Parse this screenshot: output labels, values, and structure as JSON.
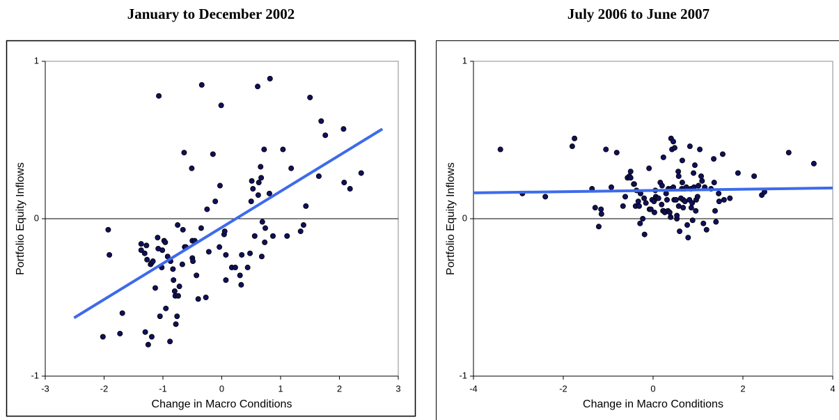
{
  "chart_data": [
    {
      "type": "scatter",
      "title": "January to December 2002",
      "x_label": "Change in Macro Conditions",
      "y_label": "Portfolio Equity Inflows",
      "xlim": [
        -3,
        3
      ],
      "ylim": [
        -1,
        1
      ],
      "xticks": [
        -3,
        -2,
        -1,
        0,
        1,
        2,
        3
      ],
      "yticks": [
        -1,
        0,
        1
      ],
      "zero_line": true,
      "color": "#10105a",
      "x": [
        -1.93,
        -1.91,
        -2.02,
        -1.73,
        -1.69,
        -1.37,
        -1.28,
        -1.31,
        -1.27,
        -1.37,
        -1.3,
        -1.25,
        -1.19,
        -1.21,
        -1.19,
        -1.17,
        -1.13,
        -1.09,
        -1.08,
        -1.07,
        -1.05,
        -1.02,
        -0.98,
        -1.01,
        -0.96,
        -0.95,
        -0.92,
        -0.88,
        -0.87,
        -0.83,
        -0.82,
        -0.8,
        -0.79,
        -0.78,
        -0.76,
        -0.75,
        -0.74,
        -0.72,
        -0.67,
        -0.66,
        -0.64,
        -0.63,
        -0.61,
        -0.51,
        -0.5,
        -0.5,
        -0.49,
        -0.46,
        -0.43,
        -0.4,
        -0.35,
        -0.34,
        -0.27,
        -0.25,
        -0.22,
        -0.15,
        -0.11,
        -0.04,
        -0.03,
        -0.01,
        0.04,
        0.05,
        0.07,
        0.07,
        0.17,
        0.23,
        0.31,
        0.33,
        0.34,
        0.44,
        0.48,
        0.5,
        0.51,
        0.53,
        0.56,
        0.61,
        0.62,
        0.63,
        0.66,
        0.67,
        0.68,
        0.69,
        0.72,
        0.73,
        0.74,
        0.81,
        0.82,
        0.87,
        1.04,
        1.11,
        1.18,
        1.34,
        1.39,
        1.43,
        1.5,
        1.65,
        1.69,
        1.76,
        2.07,
        2.08,
        2.18,
        2.37
      ],
      "values": [
        -0.07,
        -0.23,
        -0.75,
        -0.73,
        -0.6,
        -0.16,
        -0.17,
        -0.22,
        -0.26,
        -0.2,
        -0.72,
        -0.8,
        -0.75,
        -0.29,
        -0.28,
        -0.27,
        -0.44,
        -0.12,
        -0.19,
        0.78,
        -0.62,
        -0.31,
        -0.14,
        -0.2,
        -0.15,
        -0.57,
        -0.24,
        -0.78,
        -0.27,
        -0.32,
        -0.39,
        -0.46,
        -0.49,
        -0.67,
        -0.62,
        -0.04,
        -0.49,
        -0.43,
        -0.29,
        -0.07,
        0.42,
        -0.18,
        -0.18,
        0.32,
        -0.14,
        -0.25,
        -0.27,
        -0.14,
        -0.36,
        -0.51,
        -0.06,
        0.85,
        -0.5,
        0.06,
        -0.21,
        0.41,
        0.11,
        -0.18,
        0.21,
        0.72,
        -0.1,
        -0.08,
        -0.23,
        -0.39,
        -0.31,
        -0.31,
        -0.36,
        -0.42,
        -0.23,
        -0.31,
        -0.22,
        0.11,
        0.24,
        0.19,
        -0.11,
        0.84,
        0.15,
        0.23,
        0.33,
        0.26,
        -0.24,
        -0.02,
        0.44,
        -0.15,
        -0.06,
        0.16,
        0.89,
        -0.11,
        0.44,
        -0.11,
        0.32,
        -0.08,
        -0.04,
        0.08,
        0.77,
        0.27,
        0.62,
        0.53,
        0.57,
        0.23,
        0.19,
        0.29
      ],
      "trend_line": {
        "color": "#3d6bea",
        "x": [
          -2.51,
          2.73
        ],
        "values": [
          -0.63,
          0.57
        ]
      }
    },
    {
      "type": "scatter",
      "title": "July 2006 to June 2007",
      "x_label": "Change in Macro Conditions",
      "y_label": "Portfolio Equity Inflows",
      "xlim": [
        -4,
        4
      ],
      "ylim": [
        -1,
        1
      ],
      "xticks": [
        -4,
        -2,
        0,
        2,
        4
      ],
      "yticks": [
        -1,
        0,
        1
      ],
      "zero_line": true,
      "color": "#10105a",
      "x": [
        -3.4,
        -2.91,
        -2.4,
        -1.8,
        -1.75,
        -1.36,
        -1.29,
        -1.21,
        -1.16,
        -1.15,
        -1.05,
        -0.93,
        -0.81,
        -0.67,
        -0.62,
        -0.57,
        -0.53,
        -0.5,
        -0.5,
        -0.43,
        -0.42,
        -0.39,
        -0.37,
        -0.33,
        -0.31,
        -0.29,
        -0.28,
        -0.23,
        -0.2,
        -0.19,
        -0.16,
        -0.09,
        -0.08,
        -0.05,
        -0.02,
        0.02,
        0.03,
        0.05,
        0.06,
        0.09,
        0.12,
        0.16,
        0.19,
        0.2,
        0.22,
        0.23,
        0.23,
        0.26,
        0.29,
        0.31,
        0.33,
        0.34,
        0.37,
        0.39,
        0.4,
        0.4,
        0.42,
        0.45,
        0.45,
        0.47,
        0.48,
        0.51,
        0.53,
        0.53,
        0.56,
        0.57,
        0.57,
        0.59,
        0.62,
        0.64,
        0.65,
        0.65,
        0.67,
        0.67,
        0.7,
        0.71,
        0.74,
        0.76,
        0.78,
        0.81,
        0.82,
        0.84,
        0.85,
        0.87,
        0.88,
        0.9,
        0.91,
        0.93,
        0.95,
        0.96,
        0.99,
        1.01,
        1.04,
        1.07,
        1.09,
        1.12,
        1.15,
        1.19,
        1.29,
        1.35,
        1.36,
        1.4,
        1.38,
        1.46,
        1.47,
        1.55,
        1.58,
        1.71,
        1.89,
        2.25,
        2.42,
        2.48,
        3.02,
        3.58
      ],
      "values": [
        0.44,
        0.16,
        0.14,
        0.46,
        0.51,
        0.19,
        0.07,
        -0.05,
        0.06,
        0.03,
        0.44,
        0.2,
        0.42,
        0.08,
        0.14,
        0.26,
        0.27,
        0.3,
        0.26,
        0.22,
        0.22,
        0.08,
        0.18,
        0.11,
        0.08,
        -0.03,
        0.16,
        0.0,
        0.13,
        -0.1,
        0.1,
        0.32,
        0.06,
        0.06,
        0.12,
        0.11,
        0.04,
        0.18,
        0.14,
        0.13,
        0.13,
        0.23,
        0.09,
        0.21,
        0.05,
        0.05,
        0.39,
        0.04,
        0.16,
        0.12,
        0.05,
        0.19,
        0.04,
        0.01,
        0.51,
        0.19,
        0.44,
        0.2,
        0.49,
        0.12,
        0.45,
        0.12,
        0.0,
        0.02,
        0.3,
        0.27,
        0.08,
        -0.08,
        0.13,
        0.19,
        0.23,
        0.37,
        0.12,
        0.07,
        0.19,
        0.11,
        0.2,
        -0.04,
        -0.12,
        0.12,
        0.46,
        0.19,
        0.07,
        0.1,
        -0.01,
        0.29,
        0.2,
        0.34,
        0.05,
        0.12,
        0.14,
        0.21,
        0.44,
        0.27,
        0.24,
        -0.03,
        0.2,
        -0.07,
        0.19,
        0.38,
        0.23,
        -0.02,
        0.05,
        0.16,
        0.11,
        0.41,
        0.12,
        0.13,
        0.29,
        0.27,
        0.15,
        0.17,
        0.42,
        0.35
      ],
      "trend_line": {
        "color": "#3d6bea",
        "x": [
          -4,
          4
        ],
        "values": [
          0.164,
          0.195
        ]
      }
    }
  ]
}
